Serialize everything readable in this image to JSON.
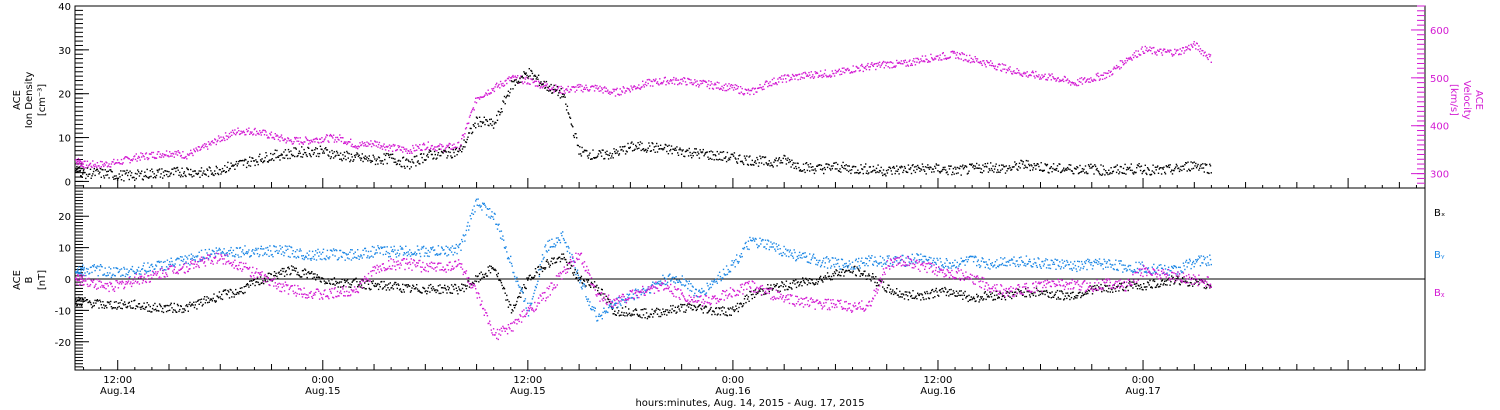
{
  "colors": {
    "black": "#000000",
    "magenta": "#d31ad3",
    "blue": "#1e88e5"
  },
  "x_axis": {
    "ticks": [
      {
        "hours": 12,
        "time": "12:00",
        "date": "Aug.14"
      },
      {
        "hours": 24,
        "time": "0:00",
        "date": "Aug.15"
      },
      {
        "hours": 36,
        "time": "12:00",
        "date": "Aug.15"
      },
      {
        "hours": 48,
        "time": "0:00",
        "date": "Aug.16"
      },
      {
        "hours": 60,
        "time": "12:00",
        "date": "Aug.16"
      },
      {
        "hours": 72,
        "time": "0:00",
        "date": "Aug.17"
      }
    ],
    "title": "hours:minutes, Aug. 14, 2015 - Aug. 17, 2015",
    "range_hours": [
      9.5,
      88.5
    ]
  },
  "panel1": {
    "left_label": [
      "ACE",
      "Ion Density",
      "[cm⁻³]"
    ],
    "right_label": [
      "ACE",
      "Velocity",
      "[km/s]"
    ]
  },
  "panel2": {
    "left_label": [
      "ACE",
      "B",
      "[nT]"
    ]
  },
  "chart_data": [
    {
      "type": "scatter",
      "panel": "top",
      "y_left": {
        "label": "ACE Ion Density [cm⁻³]",
        "ylim": [
          -1.5,
          40
        ],
        "ticks": [
          0,
          10,
          20,
          30,
          40
        ]
      },
      "y_right": {
        "label": "ACE Velocity [km/s]",
        "ylim": [
          270,
          650
        ],
        "ticks": [
          300,
          400,
          500,
          600
        ]
      },
      "series": [
        {
          "name": "",
          "axis": "left",
          "color": "#000000",
          "x": [
            9.5,
            10,
            11,
            12,
            13,
            14,
            15,
            16,
            17,
            18,
            19,
            20,
            21,
            22,
            23,
            24,
            25,
            26,
            27,
            28,
            29,
            30,
            31,
            32,
            33,
            34,
            35,
            36,
            37,
            38,
            39,
            40,
            41,
            42,
            43,
            44,
            45,
            46,
            47,
            48,
            49,
            50,
            51,
            52,
            53,
            54,
            55,
            56,
            57,
            58,
            59,
            60,
            61,
            62,
            63,
            64,
            65,
            66,
            67,
            68,
            69,
            70,
            71,
            72,
            73,
            74,
            75,
            76
          ],
          "y": [
            3,
            2,
            2,
            1.5,
            1.5,
            2,
            2,
            2.5,
            2,
            3,
            4,
            5,
            6,
            6.5,
            7,
            7,
            6,
            5.5,
            5,
            5.5,
            4,
            6,
            6.5,
            7,
            14,
            13,
            22,
            25,
            22,
            20,
            7,
            6,
            6.5,
            8,
            8,
            7.5,
            7,
            6.5,
            6,
            5.5,
            5,
            4.5,
            5,
            3.5,
            3,
            3.5,
            3,
            3,
            2.5,
            3,
            3,
            3,
            2.5,
            3,
            3.5,
            3,
            4,
            3.5,
            3,
            3,
            3,
            2.5,
            3,
            3,
            2.5,
            3,
            4,
            3
          ]
        },
        {
          "name": "",
          "axis": "right",
          "color": "#d31ad3",
          "x": [
            9.5,
            10,
            11,
            12,
            13,
            14,
            15,
            16,
            17,
            18,
            19,
            20,
            21,
            22,
            23,
            24,
            25,
            26,
            27,
            28,
            29,
            30,
            31,
            32,
            33,
            34,
            35,
            36,
            37,
            38,
            39,
            40,
            41,
            42,
            43,
            44,
            45,
            46,
            47,
            48,
            49,
            50,
            51,
            52,
            53,
            54,
            55,
            56,
            57,
            58,
            59,
            60,
            61,
            62,
            63,
            64,
            65,
            66,
            67,
            68,
            69,
            70,
            71,
            72,
            73,
            74,
            75,
            76
          ],
          "y": [
            330,
            320,
            320,
            325,
            335,
            340,
            345,
            340,
            355,
            375,
            390,
            390,
            380,
            370,
            370,
            375,
            375,
            360,
            365,
            355,
            350,
            360,
            355,
            360,
            460,
            480,
            500,
            495,
            485,
            475,
            480,
            480,
            470,
            480,
            490,
            495,
            495,
            490,
            485,
            480,
            470,
            490,
            500,
            505,
            510,
            510,
            520,
            525,
            530,
            530,
            540,
            545,
            550,
            540,
            530,
            520,
            510,
            505,
            500,
            490,
            500,
            510,
            540,
            560,
            555,
            555,
            570,
            540
          ]
        }
      ]
    },
    {
      "type": "scatter",
      "panel": "bottom",
      "y": {
        "label": "ACE B [nT]",
        "ylim": [
          -29,
          29
        ],
        "ticks": [
          -20,
          -10,
          0,
          10,
          20
        ]
      },
      "legend": "right",
      "series": [
        {
          "name": "Bₓ",
          "color": "#000000",
          "x": [
            9.5,
            10,
            11,
            12,
            13,
            14,
            15,
            16,
            17,
            18,
            19,
            20,
            21,
            22,
            23,
            24,
            25,
            26,
            27,
            28,
            29,
            30,
            31,
            32,
            33,
            34,
            35,
            36,
            37,
            38,
            39,
            40,
            41,
            42,
            43,
            44,
            45,
            46,
            47,
            48,
            49,
            50,
            51,
            52,
            53,
            54,
            55,
            56,
            57,
            58,
            59,
            60,
            61,
            62,
            63,
            64,
            65,
            66,
            67,
            68,
            69,
            70,
            71,
            72,
            73,
            74,
            75,
            76
          ],
          "y": [
            -7,
            -7,
            -8,
            -8,
            -8,
            -9,
            -9,
            -9,
            -7,
            -5,
            -4,
            -1,
            1,
            3,
            2,
            0,
            -1,
            -1,
            -2,
            -2,
            -3,
            -3,
            -3,
            -3,
            0,
            4,
            -10,
            0,
            5,
            7,
            0,
            -2,
            -10,
            -10,
            -11,
            -10,
            -9,
            -9,
            -10,
            -10,
            -5,
            -3,
            -2,
            -1,
            0,
            2,
            3,
            1,
            -3,
            -5,
            -5,
            -4,
            -4,
            -6,
            -5,
            -5,
            -4,
            -4,
            -5,
            -5,
            -3,
            -3,
            -2,
            -2,
            -1,
            0,
            -1,
            -2
          ]
        },
        {
          "name": "Bᵧ",
          "color": "#1e88e5",
          "x": [
            9.5,
            10,
            11,
            12,
            13,
            14,
            15,
            16,
            17,
            18,
            19,
            20,
            21,
            22,
            23,
            24,
            25,
            26,
            27,
            28,
            29,
            30,
            31,
            32,
            33,
            34,
            35,
            36,
            37,
            38,
            39,
            40,
            41,
            42,
            43,
            44,
            45,
            46,
            47,
            48,
            49,
            50,
            51,
            52,
            53,
            54,
            55,
            56,
            57,
            58,
            59,
            60,
            61,
            62,
            63,
            64,
            65,
            66,
            67,
            68,
            69,
            70,
            71,
            72,
            73,
            74,
            75,
            76
          ],
          "y": [
            3,
            3,
            3,
            2,
            3,
            4,
            5,
            6,
            8,
            9,
            9,
            9,
            9,
            9,
            8,
            8,
            8,
            8,
            9,
            9,
            9,
            9,
            9,
            10,
            25,
            20,
            5,
            -10,
            10,
            14,
            0,
            -12,
            -8,
            -5,
            -3,
            0,
            0,
            -5,
            0,
            5,
            12,
            11,
            9,
            7,
            6,
            5,
            5,
            6,
            6,
            6,
            7,
            5,
            5,
            6,
            5,
            6,
            6,
            5,
            5,
            4,
            5,
            5,
            4,
            4,
            3,
            3,
            6,
            6
          ]
        },
        {
          "name": "Bᵪ",
          "color": "#d31ad3",
          "x": [
            9.5,
            10,
            11,
            12,
            13,
            14,
            15,
            16,
            17,
            18,
            19,
            20,
            21,
            22,
            23,
            24,
            25,
            26,
            27,
            28,
            29,
            30,
            31,
            32,
            33,
            34,
            35,
            36,
            37,
            38,
            39,
            40,
            41,
            42,
            43,
            44,
            45,
            46,
            47,
            48,
            49,
            50,
            51,
            52,
            53,
            54,
            55,
            56,
            57,
            58,
            59,
            60,
            61,
            62,
            63,
            64,
            65,
            66,
            67,
            68,
            69,
            70,
            71,
            72,
            73,
            74,
            75,
            76
          ],
          "y": [
            0,
            0,
            -2,
            -2,
            0,
            1,
            3,
            4,
            6,
            7,
            5,
            2,
            -1,
            -3,
            -4,
            -5,
            -4,
            -3,
            3,
            5,
            5,
            4,
            4,
            5,
            -5,
            -18,
            -15,
            -10,
            -5,
            2,
            8,
            -5,
            -7,
            -5,
            -3,
            -2,
            -5,
            -7,
            -6,
            -4,
            -2,
            -4,
            -6,
            -7,
            -8,
            -8,
            -9,
            -8,
            5,
            6,
            4,
            3,
            2,
            0,
            -2,
            -4,
            -3,
            -2,
            -1,
            -2,
            -2,
            -1,
            -2,
            3,
            2,
            1,
            0,
            -1
          ]
        }
      ]
    }
  ]
}
